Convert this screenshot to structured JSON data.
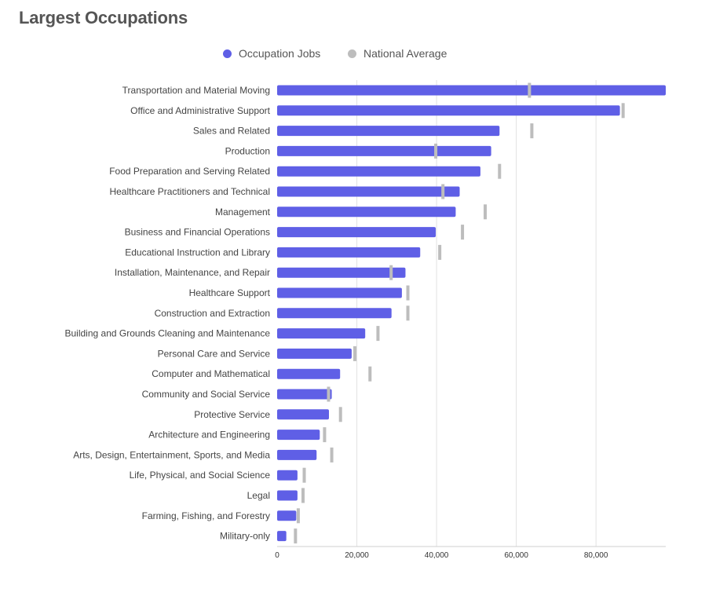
{
  "page": {
    "title": "Largest Occupations"
  },
  "legend": {
    "items": [
      {
        "label": "Occupation Jobs",
        "color": "#5f5fe6",
        "icon": "circle-swatch"
      },
      {
        "label": "National Average",
        "color": "#bdbdbd",
        "icon": "circle-swatch"
      }
    ]
  },
  "chart_data": {
    "type": "bar",
    "orientation": "horizontal",
    "categories": [
      "Transportation and Material Moving",
      "Office and Administrative Support",
      "Sales and Related",
      "Production",
      "Food Preparation and Serving Related",
      "Healthcare Practitioners and Technical",
      "Management",
      "Business and Financial Operations",
      "Educational Instruction and Library",
      "Installation, Maintenance, and Repair",
      "Healthcare Support",
      "Construction and Extraction",
      "Building and Grounds Cleaning and Maintenance",
      "Personal Care and Service",
      "Computer and Mathematical",
      "Community and Social Service",
      "Protective Service",
      "Architecture and Engineering",
      "Arts, Design, Entertainment, Sports, and Media",
      "Life, Physical, and Social Science",
      "Legal",
      "Farming, Fishing, and Forestry",
      "Military-only"
    ],
    "series": [
      {
        "name": "Occupation Jobs",
        "color": "#5f5fe6",
        "values": [
          97500,
          86000,
          55800,
          53700,
          51000,
          45800,
          44800,
          39800,
          35900,
          32200,
          31300,
          28700,
          22100,
          18700,
          15800,
          13700,
          13000,
          10700,
          9900,
          5100,
          5100,
          4800,
          2300
        ]
      },
      {
        "name": "National Average",
        "color": "#bdbdbd",
        "values": [
          63300,
          86800,
          63900,
          39800,
          55800,
          41600,
          52200,
          46500,
          40800,
          28600,
          32800,
          32800,
          25300,
          19500,
          23300,
          12900,
          15900,
          11900,
          13700,
          6800,
          6500,
          5300,
          4600
        ]
      }
    ],
    "xlim": [
      0,
      97500
    ],
    "xticks": [
      0,
      20000,
      40000,
      60000,
      80000
    ],
    "xtick_labels": [
      "0",
      "20,000",
      "40,000",
      "60,000",
      "80,000"
    ],
    "grid": true,
    "legend_position": "top-center"
  }
}
